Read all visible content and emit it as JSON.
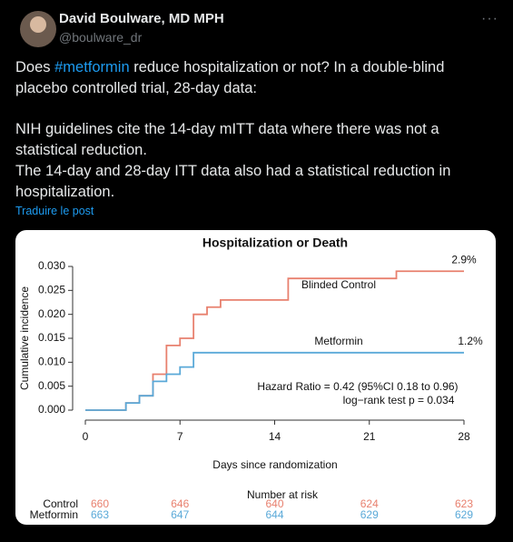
{
  "tweet": {
    "author": "David Boulware, MD MPH",
    "handle": "@boulware_dr",
    "more": "···",
    "paragraphs": [
      [
        "Does ",
        "#metformin",
        " reduce hospitalization or not?  In a double-blind placebo controlled trial, 28-day data:"
      ],
      [
        "NIH guidelines cite the 14-day mITT data where there was not a statistical reduction."
      ],
      [
        "The 14-day and 28-day ITT data also had a statistical reduction in hospitalization."
      ]
    ],
    "translate": "Traduire le post"
  },
  "chart_data": {
    "type": "line",
    "title": "Hospitalization or Death",
    "xlabel": "Days since randomization",
    "ylabel": "Cumulative incidence",
    "xlim": [
      0,
      28
    ],
    "ylim": [
      0,
      0.03
    ],
    "xticks": [
      0,
      7,
      14,
      21,
      28
    ],
    "yticks": [
      {
        "value": 0,
        "label": "0.000"
      },
      {
        "value": 0.005,
        "label": "0.005"
      },
      {
        "value": 0.01,
        "label": "0.010"
      },
      {
        "value": 0.015,
        "label": "0.015"
      },
      {
        "value": 0.02,
        "label": "0.020"
      },
      {
        "value": 0.025,
        "label": "0.025"
      },
      {
        "value": 0.03,
        "label": "0.030"
      }
    ],
    "step": true,
    "series": [
      {
        "name": "Blinded Control",
        "color": "#e8806e",
        "x": [
          0,
          3,
          4,
          5,
          6,
          7,
          8,
          9,
          10,
          15,
          23,
          28
        ],
        "values": [
          0,
          0.0015,
          0.003,
          0.0075,
          0.0135,
          0.015,
          0.02,
          0.0215,
          0.023,
          0.0275,
          0.029,
          0.029
        ],
        "value_labels": [
          null,
          null,
          null,
          null,
          null,
          null,
          null,
          null,
          null,
          null,
          null,
          "2.9%"
        ]
      },
      {
        "name": "Metformin",
        "color": "#5aa9d8",
        "x": [
          0,
          3,
          4,
          5,
          6,
          7,
          8,
          28
        ],
        "values": [
          0,
          0.0015,
          0.003,
          0.006,
          0.0075,
          0.009,
          0.012,
          0.012
        ],
        "value_labels": [
          null,
          null,
          null,
          null,
          null,
          null,
          null,
          "1.2%"
        ]
      }
    ],
    "annotations": [
      "Hazard Ratio = 0.42 (95%CI 0.18 to 0.96)",
      "log−rank test p = 0.034"
    ],
    "risk_table": {
      "title": "Number at risk",
      "rows": [
        {
          "name": "Control",
          "values": [
            660,
            646,
            640,
            624,
            623
          ]
        },
        {
          "name": "Metformin",
          "values": [
            663,
            647,
            644,
            629,
            629
          ]
        }
      ]
    }
  }
}
